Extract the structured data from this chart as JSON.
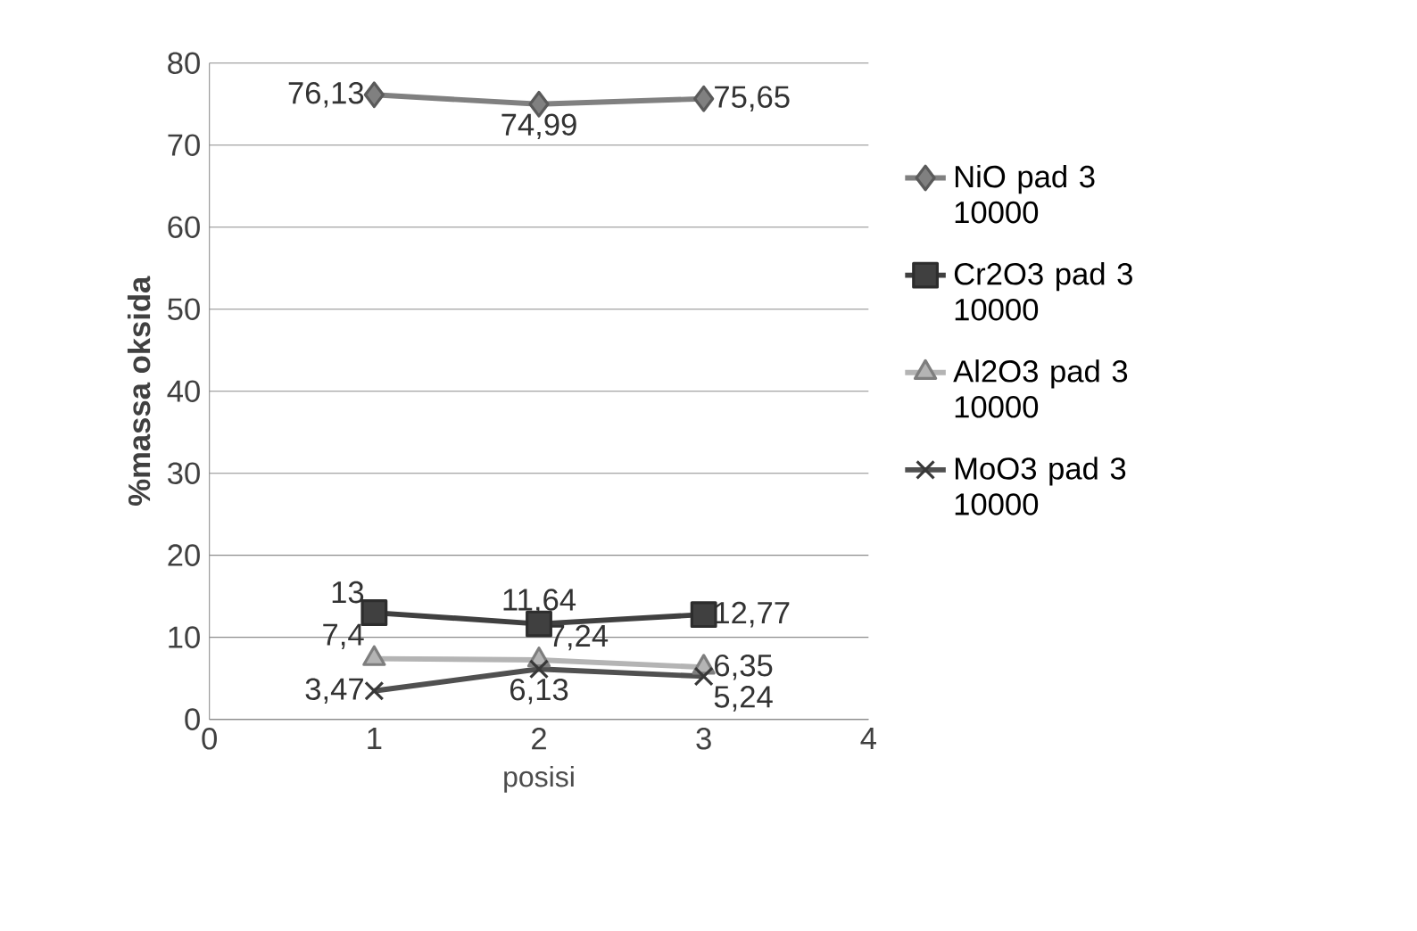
{
  "chart_data": {
    "type": "line",
    "xlabel": "posisi",
    "ylabel": "%massa oksida",
    "x": [
      1,
      2,
      3
    ],
    "xlim": [
      0,
      4
    ],
    "xticks": [
      0,
      1,
      2,
      3,
      4
    ],
    "ylim": [
      0,
      80
    ],
    "yticks": [
      0,
      10,
      20,
      30,
      40,
      50,
      60,
      70,
      80
    ],
    "grid": "y",
    "legend": "right",
    "series": [
      {
        "name": "NiO pad 3 10000",
        "color": "#808080",
        "marker": "diamond",
        "values": [
          76.13,
          74.99,
          75.65
        ],
        "value_labels": [
          "76,13",
          "74,99",
          "75,65"
        ]
      },
      {
        "name": "Cr2O3 pad 3 10000",
        "color": "#404040",
        "marker": "square",
        "values": [
          13,
          11.64,
          12.77
        ],
        "value_labels": [
          "13",
          "11,64",
          "12,77"
        ]
      },
      {
        "name": "Al2O3 pad 3 10000",
        "color": "#b4b4b4",
        "marker": "triangle",
        "values": [
          7.4,
          7.24,
          6.35
        ],
        "value_labels": [
          "7,4",
          "7,24",
          "6,35"
        ]
      },
      {
        "name": "MoO3 pad 3 10000",
        "color": "#505050",
        "marker": "cross",
        "values": [
          3.47,
          6.13,
          5.24
        ],
        "value_labels": [
          "3,47",
          "6,13",
          "5,24"
        ]
      }
    ]
  }
}
